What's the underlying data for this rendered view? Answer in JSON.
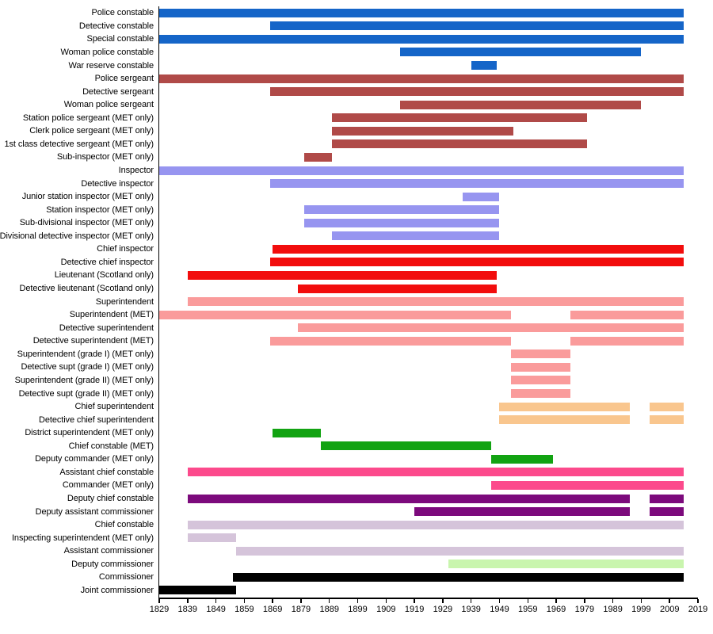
{
  "chart_data": {
    "type": "bar",
    "variant": "horizontal-timeline-gantt",
    "title": "",
    "xlabel": "",
    "ylabel": "",
    "xlim": [
      1829,
      2019
    ],
    "x_ticks": [
      1829,
      1839,
      1849,
      1859,
      1869,
      1879,
      1889,
      1899,
      1909,
      1919,
      1929,
      1939,
      1949,
      1959,
      1969,
      1979,
      1989,
      1999,
      2009,
      2019
    ],
    "grid": "off",
    "legend": "none",
    "present_end_year": 2014,
    "palette": {
      "constable_blue": "#1565c8",
      "sergeant_brick": "#b04a48",
      "inspector_periwinkle": "#9795f0",
      "chief_inspector_red": "#f20d0d",
      "superintendent_salmon": "#fa9b9b",
      "chief_superintendent_orange": "#f9c68e",
      "commander_green": "#12a312",
      "acc_hotpink": "#fc4a8c",
      "dcc_purple": "#7c0a7c",
      "chief_constable_thistle": "#d5c4da",
      "deputy_commissioner_palegreen": "#c9f5ae",
      "commissioner_black": "#000000"
    },
    "rows": [
      {
        "label": "Police constable",
        "color": "#1565c8",
        "spans": [
          [
            1829,
            2014
          ]
        ]
      },
      {
        "label": "Detective constable",
        "color": "#1565c8",
        "spans": [
          [
            1868,
            2014
          ]
        ]
      },
      {
        "label": "Special constable",
        "color": "#1565c8",
        "spans": [
          [
            1829,
            2014
          ]
        ]
      },
      {
        "label": "Woman police constable",
        "color": "#1565c8",
        "spans": [
          [
            1914,
            1999
          ]
        ]
      },
      {
        "label": "War reserve constable",
        "color": "#1565c8",
        "spans": [
          [
            1939,
            1948
          ]
        ]
      },
      {
        "label": "Police sergeant",
        "color": "#b04a48",
        "spans": [
          [
            1829,
            2014
          ]
        ]
      },
      {
        "label": "Detective sergeant",
        "color": "#b04a48",
        "spans": [
          [
            1868,
            2014
          ]
        ]
      },
      {
        "label": "Woman police sergeant",
        "color": "#b04a48",
        "spans": [
          [
            1914,
            1999
          ]
        ]
      },
      {
        "label": "Station police sergeant (MET only)",
        "color": "#b04a48",
        "spans": [
          [
            1890,
            1980
          ]
        ]
      },
      {
        "label": "Clerk police sergeant (MET only)",
        "color": "#b04a48",
        "spans": [
          [
            1890,
            1954
          ]
        ]
      },
      {
        "label": "1st class detective sergeant (MET only)",
        "color": "#b04a48",
        "spans": [
          [
            1890,
            1980
          ]
        ]
      },
      {
        "label": "Sub-inspector (MET only)",
        "color": "#b04a48",
        "spans": [
          [
            1880,
            1890
          ]
        ]
      },
      {
        "label": "Inspector",
        "color": "#9795f0",
        "spans": [
          [
            1829,
            2014
          ]
        ]
      },
      {
        "label": "Detective inspector",
        "color": "#9795f0",
        "spans": [
          [
            1868,
            2014
          ]
        ]
      },
      {
        "label": "Junior station inspector (MET only)",
        "color": "#9795f0",
        "spans": [
          [
            1936,
            1949
          ]
        ]
      },
      {
        "label": "Station inspector (MET only)",
        "color": "#9795f0",
        "spans": [
          [
            1880,
            1949
          ]
        ]
      },
      {
        "label": "Sub-divisional inspector (MET only)",
        "color": "#9795f0",
        "spans": [
          [
            1880,
            1949
          ]
        ]
      },
      {
        "label": "Divisional detective inspector (MET only)",
        "color": "#9795f0",
        "spans": [
          [
            1890,
            1949
          ]
        ]
      },
      {
        "label": "Chief inspector",
        "color": "#f20d0d",
        "spans": [
          [
            1869,
            2014
          ]
        ]
      },
      {
        "label": "Detective chief inspector",
        "color": "#f20d0d",
        "spans": [
          [
            1868,
            2014
          ]
        ]
      },
      {
        "label": "Lieutenant (Scotland only)",
        "color": "#f20d0d",
        "spans": [
          [
            1839,
            1948
          ]
        ]
      },
      {
        "label": "Detective lieutenant (Scotland only)",
        "color": "#f20d0d",
        "spans": [
          [
            1878,
            1948
          ]
        ]
      },
      {
        "label": "Superintendent",
        "color": "#fa9b9b",
        "spans": [
          [
            1839,
            2014
          ]
        ]
      },
      {
        "label": "Superintendent (MET)",
        "color": "#fa9b9b",
        "spans": [
          [
            1829,
            1953
          ],
          [
            1974,
            2014
          ]
        ]
      },
      {
        "label": "Detective superintendent",
        "color": "#fa9b9b",
        "spans": [
          [
            1878,
            2014
          ]
        ]
      },
      {
        "label": "Detective superintendent (MET)",
        "color": "#fa9b9b",
        "spans": [
          [
            1868,
            1953
          ],
          [
            1974,
            2014
          ]
        ]
      },
      {
        "label": "Superintendent (grade I) (MET only)",
        "color": "#fa9b9b",
        "spans": [
          [
            1953,
            1974
          ]
        ]
      },
      {
        "label": "Detective supt (grade I) (MET only)",
        "color": "#fa9b9b",
        "spans": [
          [
            1953,
            1974
          ]
        ]
      },
      {
        "label": "Superintendent (grade II) (MET only)",
        "color": "#fa9b9b",
        "spans": [
          [
            1953,
            1974
          ]
        ]
      },
      {
        "label": "Detective supt (grade II) (MET only)",
        "color": "#fa9b9b",
        "spans": [
          [
            1953,
            1974
          ]
        ]
      },
      {
        "label": "Chief superintendent",
        "color": "#f9c68e",
        "spans": [
          [
            1949,
            1995
          ],
          [
            2002,
            2014
          ]
        ]
      },
      {
        "label": "Detective chief superintendent",
        "color": "#f9c68e",
        "spans": [
          [
            1949,
            1995
          ],
          [
            2002,
            2014
          ]
        ]
      },
      {
        "label": "District superintendent (MET only)",
        "color": "#12a312",
        "spans": [
          [
            1869,
            1886
          ]
        ]
      },
      {
        "label": "Chief constable (MET)",
        "color": "#12a312",
        "spans": [
          [
            1886,
            1946
          ]
        ]
      },
      {
        "label": "Deputy commander (MET only)",
        "color": "#12a312",
        "spans": [
          [
            1946,
            1968
          ]
        ]
      },
      {
        "label": "Assistant chief constable",
        "color": "#fc4a8c",
        "spans": [
          [
            1839,
            2014
          ]
        ]
      },
      {
        "label": "Commander (MET only)",
        "color": "#fc4a8c",
        "spans": [
          [
            1946,
            2014
          ]
        ]
      },
      {
        "label": "Deputy chief constable",
        "color": "#7c0a7c",
        "spans": [
          [
            1839,
            1995
          ],
          [
            2002,
            2014
          ]
        ]
      },
      {
        "label": "Deputy assistant commissioner",
        "color": "#7c0a7c",
        "spans": [
          [
            1919,
            1995
          ],
          [
            2002,
            2014
          ]
        ]
      },
      {
        "label": "Chief constable",
        "color": "#d5c4da",
        "spans": [
          [
            1839,
            2014
          ]
        ]
      },
      {
        "label": "Inspecting superintendent (MET only)",
        "color": "#d5c4da",
        "spans": [
          [
            1839,
            1856
          ]
        ]
      },
      {
        "label": "Assistant commissioner",
        "color": "#d5c4da",
        "spans": [
          [
            1856,
            2014
          ]
        ]
      },
      {
        "label": "Deputy commissioner",
        "color": "#c9f5ae",
        "spans": [
          [
            1931,
            2014
          ]
        ]
      },
      {
        "label": "Commissioner",
        "color": "#000000",
        "spans": [
          [
            1855,
            2014
          ]
        ]
      },
      {
        "label": "Joint commissioner",
        "color": "#000000",
        "spans": [
          [
            1829,
            1856
          ]
        ]
      }
    ]
  }
}
